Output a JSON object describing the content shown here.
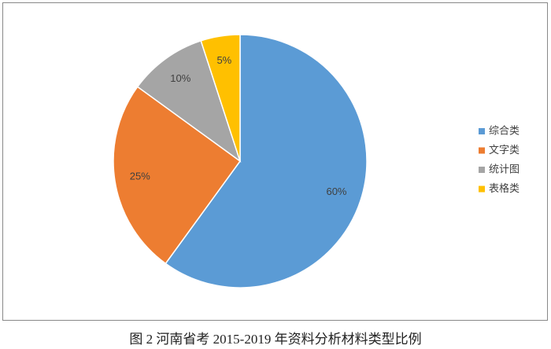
{
  "chart_data": {
    "type": "pie",
    "title": "图 2 河南省考 2015-2019 年资料分析材料类型比例",
    "categories": [
      "综合类",
      "文字类",
      "统计图",
      "表格类"
    ],
    "values": [
      60,
      25,
      10,
      5
    ],
    "value_labels": [
      "60%",
      "25%",
      "10%",
      "5%"
    ],
    "colors": [
      "#5b9bd5",
      "#ed7d31",
      "#a5a5a5",
      "#ffc000"
    ],
    "legend": "right"
  }
}
